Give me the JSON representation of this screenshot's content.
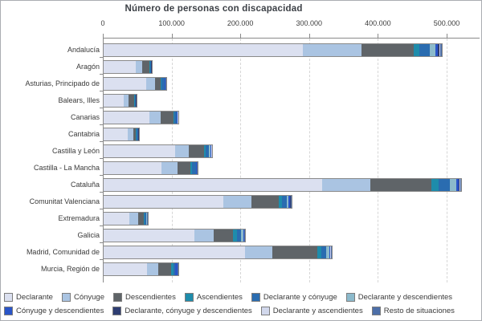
{
  "title": "Número de personas con discapacidad",
  "chart_data": {
    "type": "bar",
    "orientation": "horizontal",
    "stacked": true,
    "title": "Número de personas con discapacidad",
    "xlabel": "",
    "ylabel": "",
    "xlim": [
      0,
      548000
    ],
    "tick_values": [
      0,
      100000,
      200000,
      300000,
      400000,
      500000
    ],
    "tick_labels": [
      "0",
      "100.000",
      "200.000",
      "300.000",
      "400.000",
      "500.000"
    ],
    "grid": "vertical-dashed",
    "legend_position": "bottom",
    "legend_rows": [
      6,
      4
    ],
    "categories": [
      "Andalucía",
      "Aragón",
      "Asturias, Principado de",
      "Balears, Illes",
      "Canarias",
      "Cantabria",
      "Castilla y León",
      "Castilla - La Mancha",
      "Cataluña",
      "Comunitat Valenciana",
      "Extremadura",
      "Galicia",
      "Madrid, Comunidad de",
      "Murcia, Región de"
    ],
    "series": [
      {
        "name": "Declarante",
        "color": "#dbe0f0",
        "values": [
          290000,
          46500,
          62000,
          29000,
          67000,
          35000,
          104000,
          84500,
          318000,
          174000,
          37000,
          132500,
          205500,
          63500
        ]
      },
      {
        "name": "Cónyuge",
        "color": "#aac4e2",
        "values": [
          85500,
          10000,
          12500,
          7500,
          15500,
          7800,
          20000,
          22500,
          70000,
          41000,
          12800,
          27000,
          39500,
          16300
        ]
      },
      {
        "name": "Descendientes",
        "color": "#5f6468",
        "values": [
          76000,
          10000,
          8600,
          8000,
          19000,
          3900,
          22000,
          19500,
          89000,
          40000,
          8500,
          29000,
          66000,
          18500
        ]
      },
      {
        "name": "Ascendientes",
        "color": "#1e8cab",
        "values": [
          7500,
          900,
          1400,
          700,
          1800,
          900,
          2000,
          2000,
          9800,
          4700,
          1200,
          5800,
          5100,
          3900
        ]
      },
      {
        "name": "Declarante y cónyuge",
        "color": "#2a6cb0",
        "values": [
          15700,
          1200,
          3900,
          1200,
          2500,
          2500,
          4500,
          5500,
          16500,
          7000,
          2800,
          5800,
          7800,
          1500
        ]
      },
      {
        "name": "Declarante y descendientes",
        "color": "#8cbacc",
        "values": [
          7800,
          600,
          700,
          500,
          1000,
          400,
          3500,
          900,
          9800,
          2500,
          400,
          3100,
          3900,
          800
        ]
      },
      {
        "name": "Cónyuge y descendientes",
        "color": "#2a55c8",
        "values": [
          3900,
          300,
          400,
          300,
          700,
          300,
          600,
          500,
          3900,
          2000,
          300,
          900,
          1500,
          2600
        ]
      },
      {
        "name": "Declarante, cónyuge y descendientes",
        "color": "#2e3d72",
        "values": [
          2000,
          200,
          300,
          200,
          400,
          200,
          400,
          300,
          1200,
          800,
          200,
          500,
          700,
          400
        ]
      },
      {
        "name": "Declarante y ascendientes",
        "color": "#d2d8ec",
        "values": [
          1500,
          200,
          300,
          200,
          300,
          200,
          400,
          300,
          800,
          600,
          200,
          400,
          600,
          300
        ]
      },
      {
        "name": "Resto de situaciones",
        "color": "#4d6fa8",
        "values": [
          1800,
          400,
          600,
          400,
          600,
          400,
          700,
          600,
          1200,
          900,
          400,
          700,
          900,
          500
        ]
      }
    ]
  }
}
